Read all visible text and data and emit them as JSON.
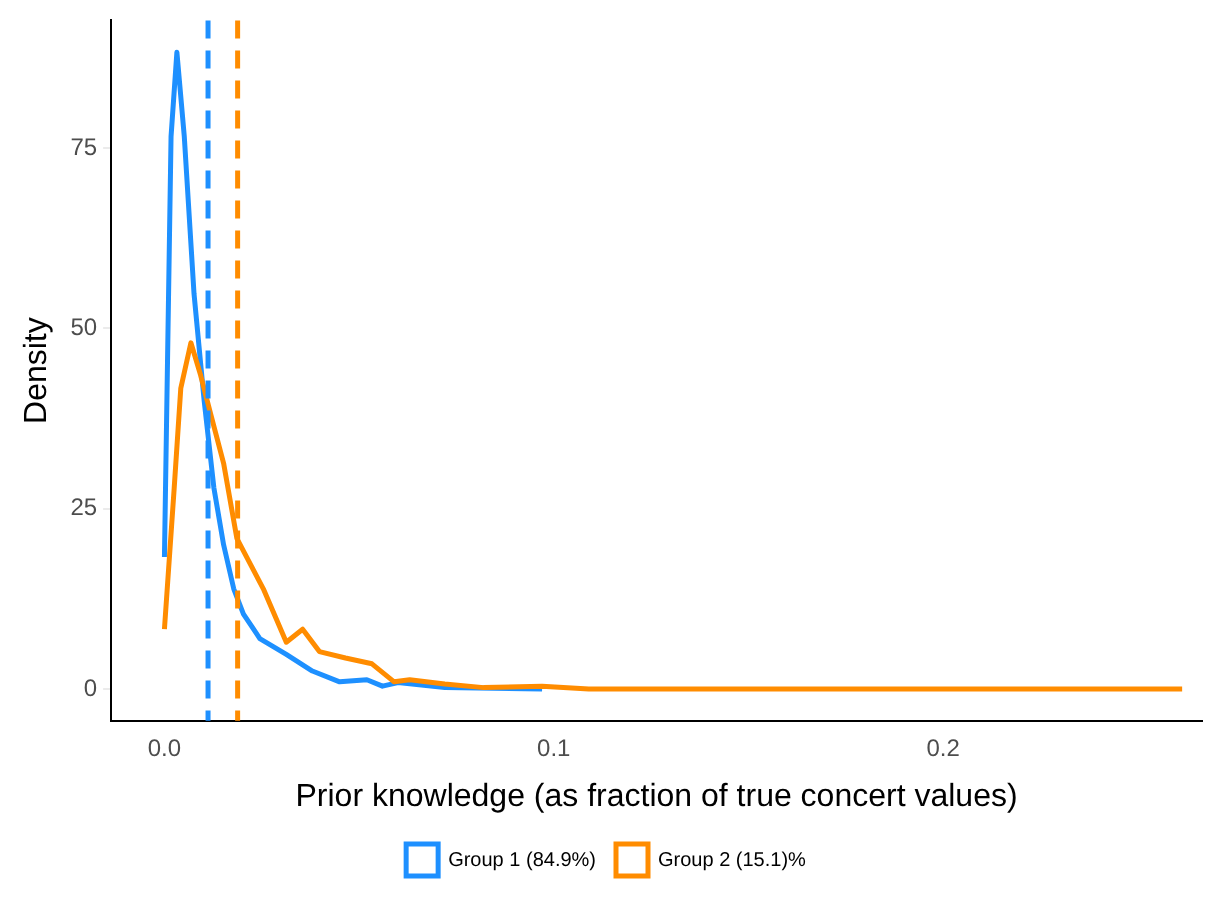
{
  "chart_data": {
    "type": "line",
    "xlabel": "Prior knowledge (as fraction of true concert values)",
    "ylabel": "Density",
    "xlim": [
      -0.0137,
      0.2665
    ],
    "ylim": [
      -4.4,
      92.7
    ],
    "xticks": [
      {
        "value": 0,
        "label": "0.0"
      },
      {
        "value": 0.1,
        "label": "0.1"
      },
      {
        "value": 0.2,
        "label": "0.2"
      }
    ],
    "yticks": [
      0,
      25,
      50,
      75
    ],
    "grid": false,
    "legend": "bottom",
    "marker": "none",
    "line_style": "solid",
    "series": [
      {
        "name": "Group 1 (84.9%)",
        "color": "#1e90ff",
        "x": [
          0,
          0.0017,
          0.0032,
          0.0051,
          0.0076,
          0.0102,
          0.0127,
          0.0152,
          0.0178,
          0.0203,
          0.0245,
          0.0313,
          0.038,
          0.045,
          0.052,
          0.056,
          0.06,
          0.072,
          0.097
        ],
        "values": [
          18.3,
          76.6,
          88.3,
          76.6,
          54.8,
          40,
          27.9,
          20,
          13.9,
          10.4,
          7.0,
          4.8,
          2.5,
          1.0,
          1.3,
          0.4,
          0.9,
          0.2,
          0
        ]
      },
      {
        "name": "Group 2 (15.1)%",
        "color": "#ff8c00",
        "x": [
          0,
          0.0025,
          0.0042,
          0.0068,
          0.0093,
          0.0118,
          0.0152,
          0.0186,
          0.022,
          0.0254,
          0.0313,
          0.0355,
          0.0398,
          0.0465,
          0.0533,
          0.059,
          0.063,
          0.072,
          0.082,
          0.097,
          0.109,
          0.15,
          0.2,
          0.2614
        ],
        "values": [
          8.3,
          27.8,
          41.7,
          48,
          43.5,
          38.3,
          31.3,
          20.9,
          17.4,
          13.9,
          6.5,
          8.3,
          5.2,
          4.3,
          3.5,
          1.0,
          1.3,
          0.7,
          0.2,
          0.4,
          0,
          0,
          0,
          0
        ]
      }
    ],
    "ref_lines": [
      {
        "axis": "x",
        "value": 0.0112,
        "color": "#1e90ff",
        "line_style": "dashed"
      },
      {
        "axis": "x",
        "value": 0.0188,
        "color": "#ff8c00",
        "line_style": "dashed"
      }
    ]
  }
}
